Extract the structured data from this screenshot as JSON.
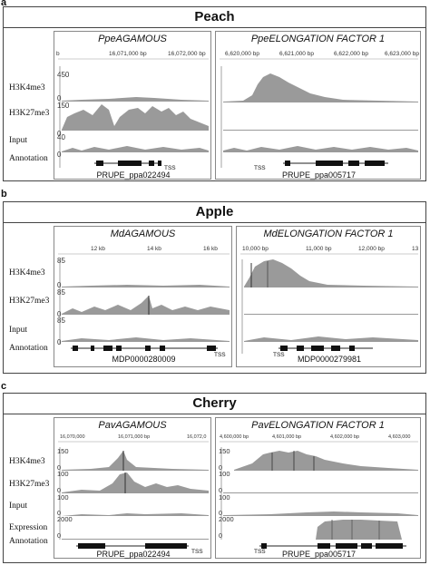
{
  "panels": [
    {
      "letter": "a",
      "title": "Peach",
      "tracks": [
        "H3K4me3",
        "H3K27me3",
        "Input",
        "Annotation"
      ],
      "left": {
        "title": "PpeAGAMOUS",
        "gene": "PRUPE_ppa022494",
        "tss": "TSS",
        "coords": [
          "b",
          "16,071,000 bp",
          "16,072,000 bp"
        ],
        "scales": [
          "450",
          "0",
          "150",
          "0",
          "40",
          "0"
        ]
      },
      "right": {
        "title": "PpeELONGATION FACTOR 1",
        "gene": "PRUPE_ppa005717",
        "tss": "TSS",
        "coords": [
          "6,620,000 bp",
          "6,621,000 bp",
          "6,622,000 bp",
          "6,623,000 bp"
        ],
        "scales": []
      }
    },
    {
      "letter": "b",
      "title": "Apple",
      "tracks": [
        "H3K4me3",
        "H3K27me3",
        "Input",
        "Annotation"
      ],
      "left": {
        "title": "MdAGAMOUS",
        "gene": "MDP0000280009",
        "tss": "TSS",
        "coords": [
          "12 kb",
          "14 kb",
          "16 kb"
        ],
        "scales": [
          "85",
          "0",
          "85",
          "0",
          "85",
          "0"
        ]
      },
      "right": {
        "title": "MdELONGATION FACTOR 1",
        "gene": "MDP0000279981",
        "tss": "TSS",
        "coords": [
          "10,000 bp",
          "11,000 bp",
          "12,000 bp",
          "13"
        ],
        "scales": []
      }
    },
    {
      "letter": "c",
      "title": "Cherry",
      "tracks": [
        "H3K4me3",
        "H3K27me3",
        "Input",
        "Expression",
        "Annotation"
      ],
      "left": {
        "title": "PavAGAMOUS",
        "gene": "PRUPE_ppa022494",
        "tss": "TSS",
        "coords": [
          "16,070,000",
          "16,071,000 bp",
          "16,072,0"
        ],
        "scales": [
          "150",
          "0",
          "100",
          "0",
          "100",
          "0",
          "2000",
          "0"
        ]
      },
      "right": {
        "title": "PavELONGATION FACTOR 1",
        "gene": "PRUPE_ppa005717",
        "tss": "TSS",
        "coords": [
          "4,600,000 bp",
          "4,601,000 bp",
          "4,602,000 bp",
          "4,603,000"
        ],
        "scales": [
          "150",
          "0",
          "100",
          "0",
          "100",
          "0",
          "2000",
          "0"
        ]
      }
    }
  ],
  "colors": {
    "signal": "#9a9a9a",
    "signal_dark": "#555555",
    "border": "#444444"
  }
}
